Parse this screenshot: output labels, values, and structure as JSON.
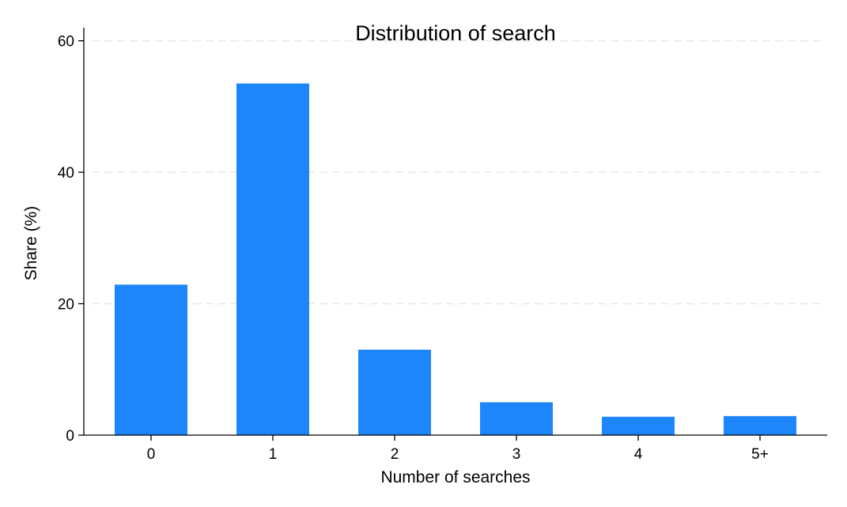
{
  "chart_data": {
    "type": "bar",
    "title": "Distribution of search",
    "xlabel": "Number of searches",
    "ylabel": "Share (%)",
    "categories": [
      "0",
      "1",
      "2",
      "3",
      "4",
      "5+"
    ],
    "values": [
      22.9,
      53.5,
      13.0,
      5.0,
      2.8,
      2.9
    ],
    "ylim": [
      0,
      62
    ],
    "yticks": [
      0,
      20,
      40,
      60
    ],
    "grid": true,
    "legend": "none",
    "bar_color": "#1e86fb"
  }
}
